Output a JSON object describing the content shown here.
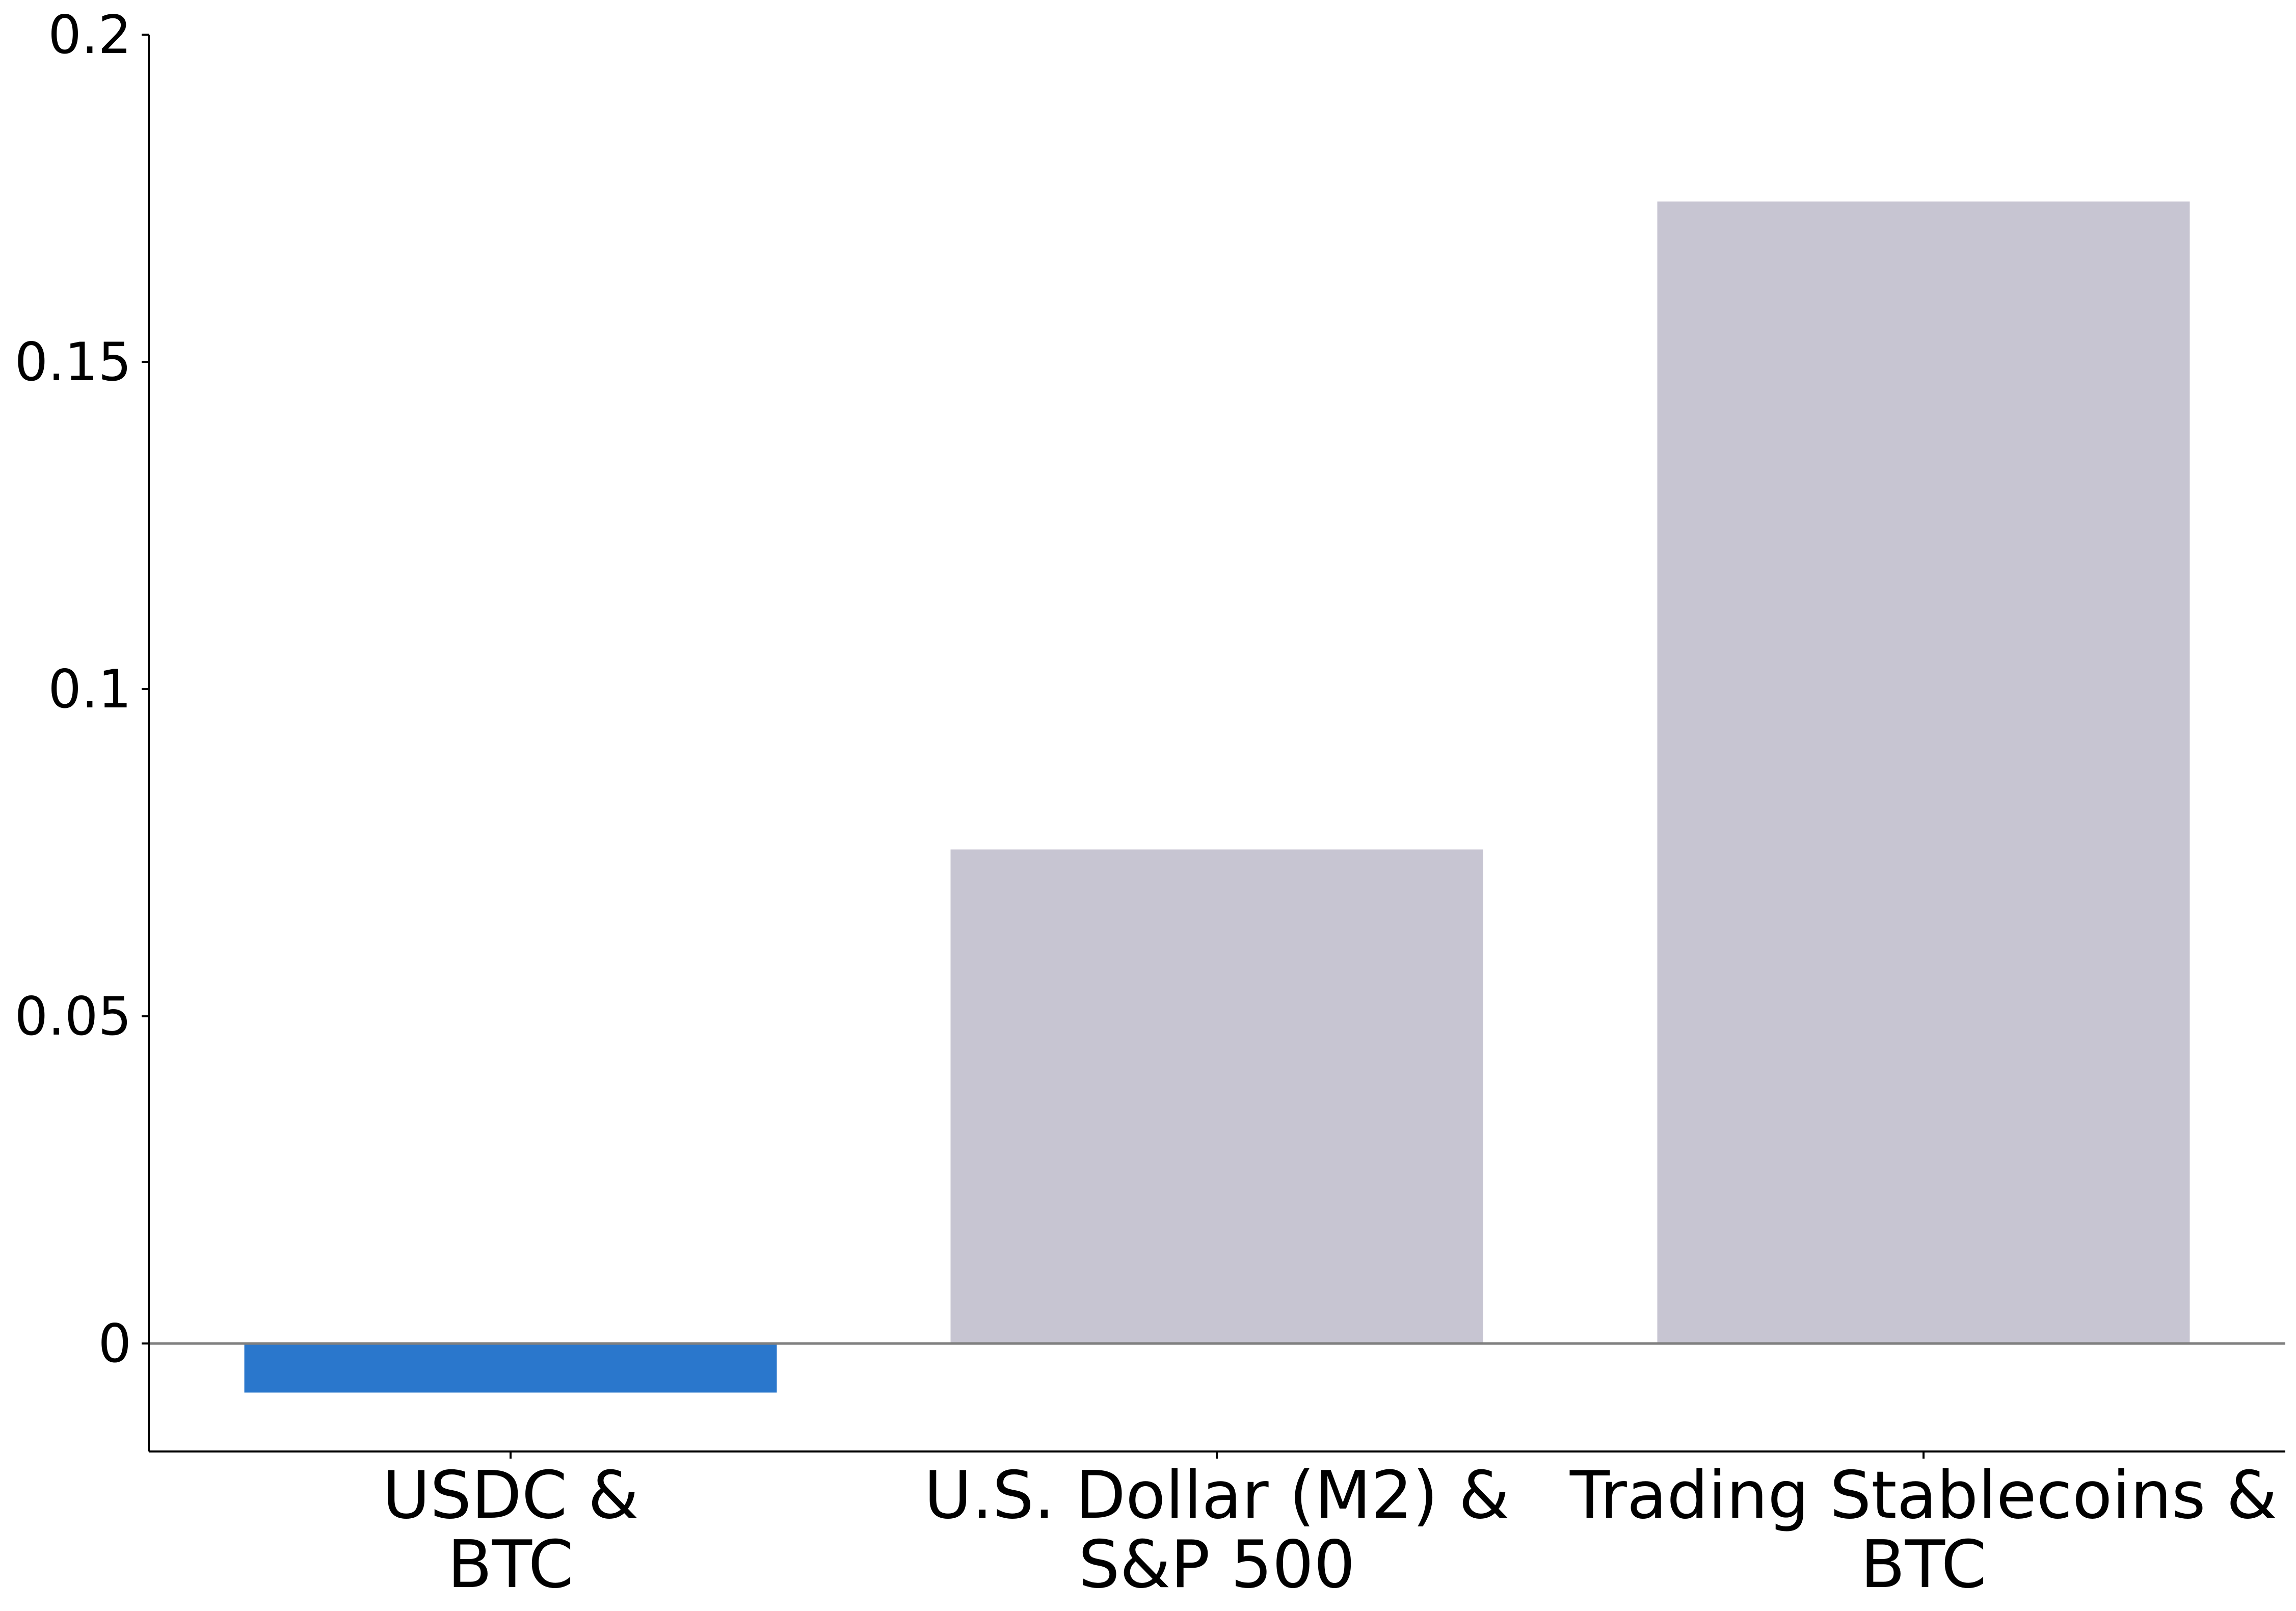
{
  "chart_data": {
    "type": "bar",
    "title": "",
    "xlabel": "",
    "ylabel": "",
    "categories": [
      [
        "USDC &",
        "BTC"
      ],
      [
        "U.S. Dollar (M2) &",
        "S&P 500"
      ],
      [
        "Trading Stablecoins &",
        "BTC"
      ]
    ],
    "values": [
      -0.0075,
      0.0755,
      0.1745
    ],
    "bar_colors": [
      "#2a77cc",
      "#c7c5d2",
      "#c7c5d2"
    ],
    "ylim": [
      -0.0165,
      0.2
    ],
    "yticks": [
      0,
      0.05,
      0.1,
      0.15,
      0.2
    ],
    "ytick_labels": [
      "0",
      "0.05",
      "0.1",
      "0.15",
      "0.2"
    ],
    "zero_line": true,
    "grid": false,
    "legend": "none"
  }
}
